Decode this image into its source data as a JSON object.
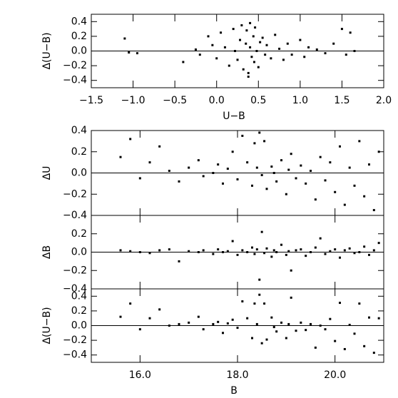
{
  "chart_data": [
    {
      "type": "scatter",
      "xlabel": "U−B",
      "ylabel": "Δ(U−B)",
      "color": "#000000",
      "xlim": [
        -1.5,
        2.0
      ],
      "ylim": [
        -0.5,
        0.5
      ],
      "xticks": [
        {
          "value": -1.5,
          "label": "−1.5"
        },
        {
          "value": -1.0,
          "label": "−1.0"
        },
        {
          "value": -0.5,
          "label": "−0.5"
        },
        {
          "value": 0,
          "label": "0.0"
        },
        0.5,
        {
          "value": 1.0,
          "label": "1.0"
        },
        1.5,
        {
          "value": 2.0,
          "label": "2.0"
        }
      ],
      "yticks": [
        0.4,
        0.2,
        {
          "value": 0,
          "label": "0.0"
        },
        {
          "value": -0.2,
          "label": "−0.2"
        },
        {
          "value": -0.4,
          "label": "−0.4"
        }
      ],
      "x": [
        -1.1,
        -1.05,
        -0.95,
        -0.4,
        -0.25,
        -0.2,
        -0.1,
        -0.05,
        0.0,
        0.05,
        0.1,
        0.15,
        0.2,
        0.22,
        0.25,
        0.28,
        0.3,
        0.32,
        0.35,
        0.36,
        0.38,
        0.4,
        0.4,
        0.42,
        0.44,
        0.45,
        0.46,
        0.48,
        0.5,
        0.52,
        0.55,
        0.58,
        0.6,
        0.65,
        0.7,
        0.75,
        0.8,
        0.85,
        0.9,
        1.0,
        1.05,
        1.1,
        1.2,
        1.3,
        1.4,
        1.5,
        1.55,
        1.6,
        1.65,
        0.38
      ],
      "y": [
        0.17,
        -0.02,
        -0.03,
        -0.15,
        0.02,
        -0.05,
        0.2,
        0.08,
        -0.1,
        0.25,
        0.05,
        -0.2,
        0.3,
        0.0,
        -0.12,
        0.15,
        0.35,
        -0.25,
        0.1,
        0.28,
        -0.3,
        0.05,
        0.38,
        -0.08,
        0.2,
        -0.15,
        0.32,
        0.0,
        -0.22,
        0.12,
        0.18,
        -0.05,
        0.08,
        -0.1,
        0.22,
        0.03,
        -0.12,
        0.1,
        -0.05,
        0.15,
        -0.08,
        0.05,
        0.02,
        -0.03,
        0.1,
        0.3,
        -0.05,
        0.25,
        0.0,
        -0.35
      ]
    },
    {
      "type": "scatter",
      "ylabel": "ΔU",
      "color": "#000000",
      "xlim": [
        15,
        21
      ],
      "ylim": [
        -0.4,
        0.4
      ],
      "yticks": [
        0.4,
        0.2,
        {
          "value": 0,
          "label": "0.0"
        },
        {
          "value": -0.2,
          "label": "−0.2"
        },
        {
          "value": -0.4,
          "label": "−0.4"
        }
      ],
      "x": [
        15.6,
        15.8,
        16.0,
        16.2,
        16.4,
        16.6,
        16.8,
        17.0,
        17.2,
        17.3,
        17.5,
        17.6,
        17.7,
        17.8,
        17.9,
        18.0,
        18.1,
        18.2,
        18.3,
        18.35,
        18.4,
        18.5,
        18.55,
        18.6,
        18.7,
        18.75,
        18.8,
        18.9,
        19.0,
        19.05,
        19.1,
        19.2,
        19.3,
        19.4,
        19.5,
        19.6,
        19.7,
        19.8,
        19.9,
        20.0,
        20.1,
        20.2,
        20.3,
        20.4,
        20.5,
        20.6,
        20.7,
        20.8,
        20.9,
        18.45
      ],
      "y": [
        0.15,
        0.32,
        -0.05,
        0.1,
        0.25,
        0.02,
        -0.08,
        0.05,
        0.12,
        -0.03,
        0.0,
        0.08,
        -0.1,
        0.04,
        0.2,
        -0.06,
        0.35,
        0.1,
        -0.12,
        0.28,
        0.05,
        -0.02,
        0.3,
        -0.15,
        0.06,
        0.0,
        -0.08,
        0.12,
        -0.2,
        0.03,
        0.18,
        -0.05,
        0.07,
        -0.1,
        0.02,
        -0.25,
        0.15,
        -0.07,
        0.1,
        -0.18,
        0.25,
        -0.3,
        0.05,
        -0.12,
        0.3,
        -0.22,
        0.08,
        -0.35,
        0.2,
        0.38
      ]
    },
    {
      "type": "scatter",
      "ylabel": "ΔB",
      "color": "#000000",
      "xlim": [
        15,
        21
      ],
      "ylim": [
        -0.4,
        0.4
      ],
      "yticks": [
        0.2,
        {
          "value": 0,
          "label": "0.0"
        },
        {
          "value": -0.2,
          "label": "−0.2"
        },
        {
          "value": -0.4,
          "label": "−0.4"
        }
      ],
      "x": [
        15.6,
        15.8,
        16.0,
        16.2,
        16.4,
        16.6,
        16.8,
        17.0,
        17.2,
        17.3,
        17.5,
        17.6,
        17.7,
        17.8,
        17.9,
        18.0,
        18.1,
        18.2,
        18.3,
        18.35,
        18.4,
        18.5,
        18.55,
        18.6,
        18.7,
        18.75,
        18.8,
        18.9,
        19.0,
        19.05,
        19.1,
        19.2,
        19.3,
        19.4,
        19.5,
        19.6,
        19.7,
        19.8,
        19.9,
        20.0,
        20.1,
        20.2,
        20.3,
        20.4,
        20.5,
        20.6,
        20.7,
        20.8,
        20.9,
        18.45
      ],
      "y": [
        0.02,
        0.01,
        0.0,
        -0.01,
        0.02,
        0.03,
        -0.1,
        0.01,
        0.0,
        0.02,
        -0.02,
        0.03,
        0.0,
        0.01,
        0.12,
        -0.03,
        0.02,
        0.0,
        0.05,
        -0.02,
        0.03,
        0.22,
        -0.01,
        0.04,
        -0.05,
        0.02,
        0.0,
        0.08,
        -0.03,
        0.01,
        -0.2,
        0.02,
        0.03,
        -0.04,
        0.0,
        0.05,
        0.15,
        -0.02,
        0.01,
        0.03,
        -0.06,
        0.02,
        0.04,
        -0.01,
        0.0,
        0.06,
        -0.03,
        0.02,
        0.1,
        -0.3
      ]
    },
    {
      "type": "scatter",
      "xlabel": "B",
      "ylabel": "Δ(U−B)",
      "color": "#000000",
      "xlim": [
        15,
        21
      ],
      "ylim": [
        -0.5,
        0.5
      ],
      "xticks": [
        {
          "value": 16,
          "label": "16.0"
        },
        {
          "value": 18,
          "label": "18.0"
        },
        {
          "value": 20,
          "label": "20.0"
        }
      ],
      "yticks": [
        0.4,
        0.2,
        {
          "value": 0,
          "label": "0.0"
        },
        {
          "value": -0.2,
          "label": "−0.2"
        },
        {
          "value": -0.4,
          "label": "−0.4"
        }
      ],
      "x": [
        15.6,
        15.8,
        16.0,
        16.2,
        16.4,
        16.6,
        16.8,
        17.0,
        17.2,
        17.3,
        17.5,
        17.6,
        17.7,
        17.8,
        17.9,
        18.0,
        18.1,
        18.2,
        18.3,
        18.35,
        18.4,
        18.5,
        18.55,
        18.6,
        18.7,
        18.75,
        18.8,
        18.9,
        19.0,
        19.05,
        19.1,
        19.2,
        19.3,
        19.4,
        19.5,
        19.6,
        19.7,
        19.8,
        19.9,
        20.0,
        20.1,
        20.2,
        20.3,
        20.4,
        20.5,
        20.6,
        20.7,
        20.8,
        20.9,
        18.45
      ],
      "y": [
        0.12,
        0.3,
        -0.05,
        0.1,
        0.22,
        0.0,
        0.02,
        0.04,
        0.12,
        -0.05,
        0.02,
        0.05,
        -0.1,
        0.03,
        0.08,
        -0.03,
        0.33,
        0.1,
        -0.17,
        0.3,
        0.02,
        -0.24,
        0.3,
        -0.19,
        0.11,
        -0.02,
        -0.08,
        0.04,
        -0.17,
        0.02,
        0.38,
        -0.07,
        0.04,
        -0.06,
        0.02,
        -0.3,
        0.0,
        -0.05,
        0.09,
        -0.21,
        0.31,
        -0.32,
        0.01,
        -0.11,
        0.3,
        -0.28,
        0.11,
        -0.37,
        0.1,
        0.42
      ]
    }
  ]
}
